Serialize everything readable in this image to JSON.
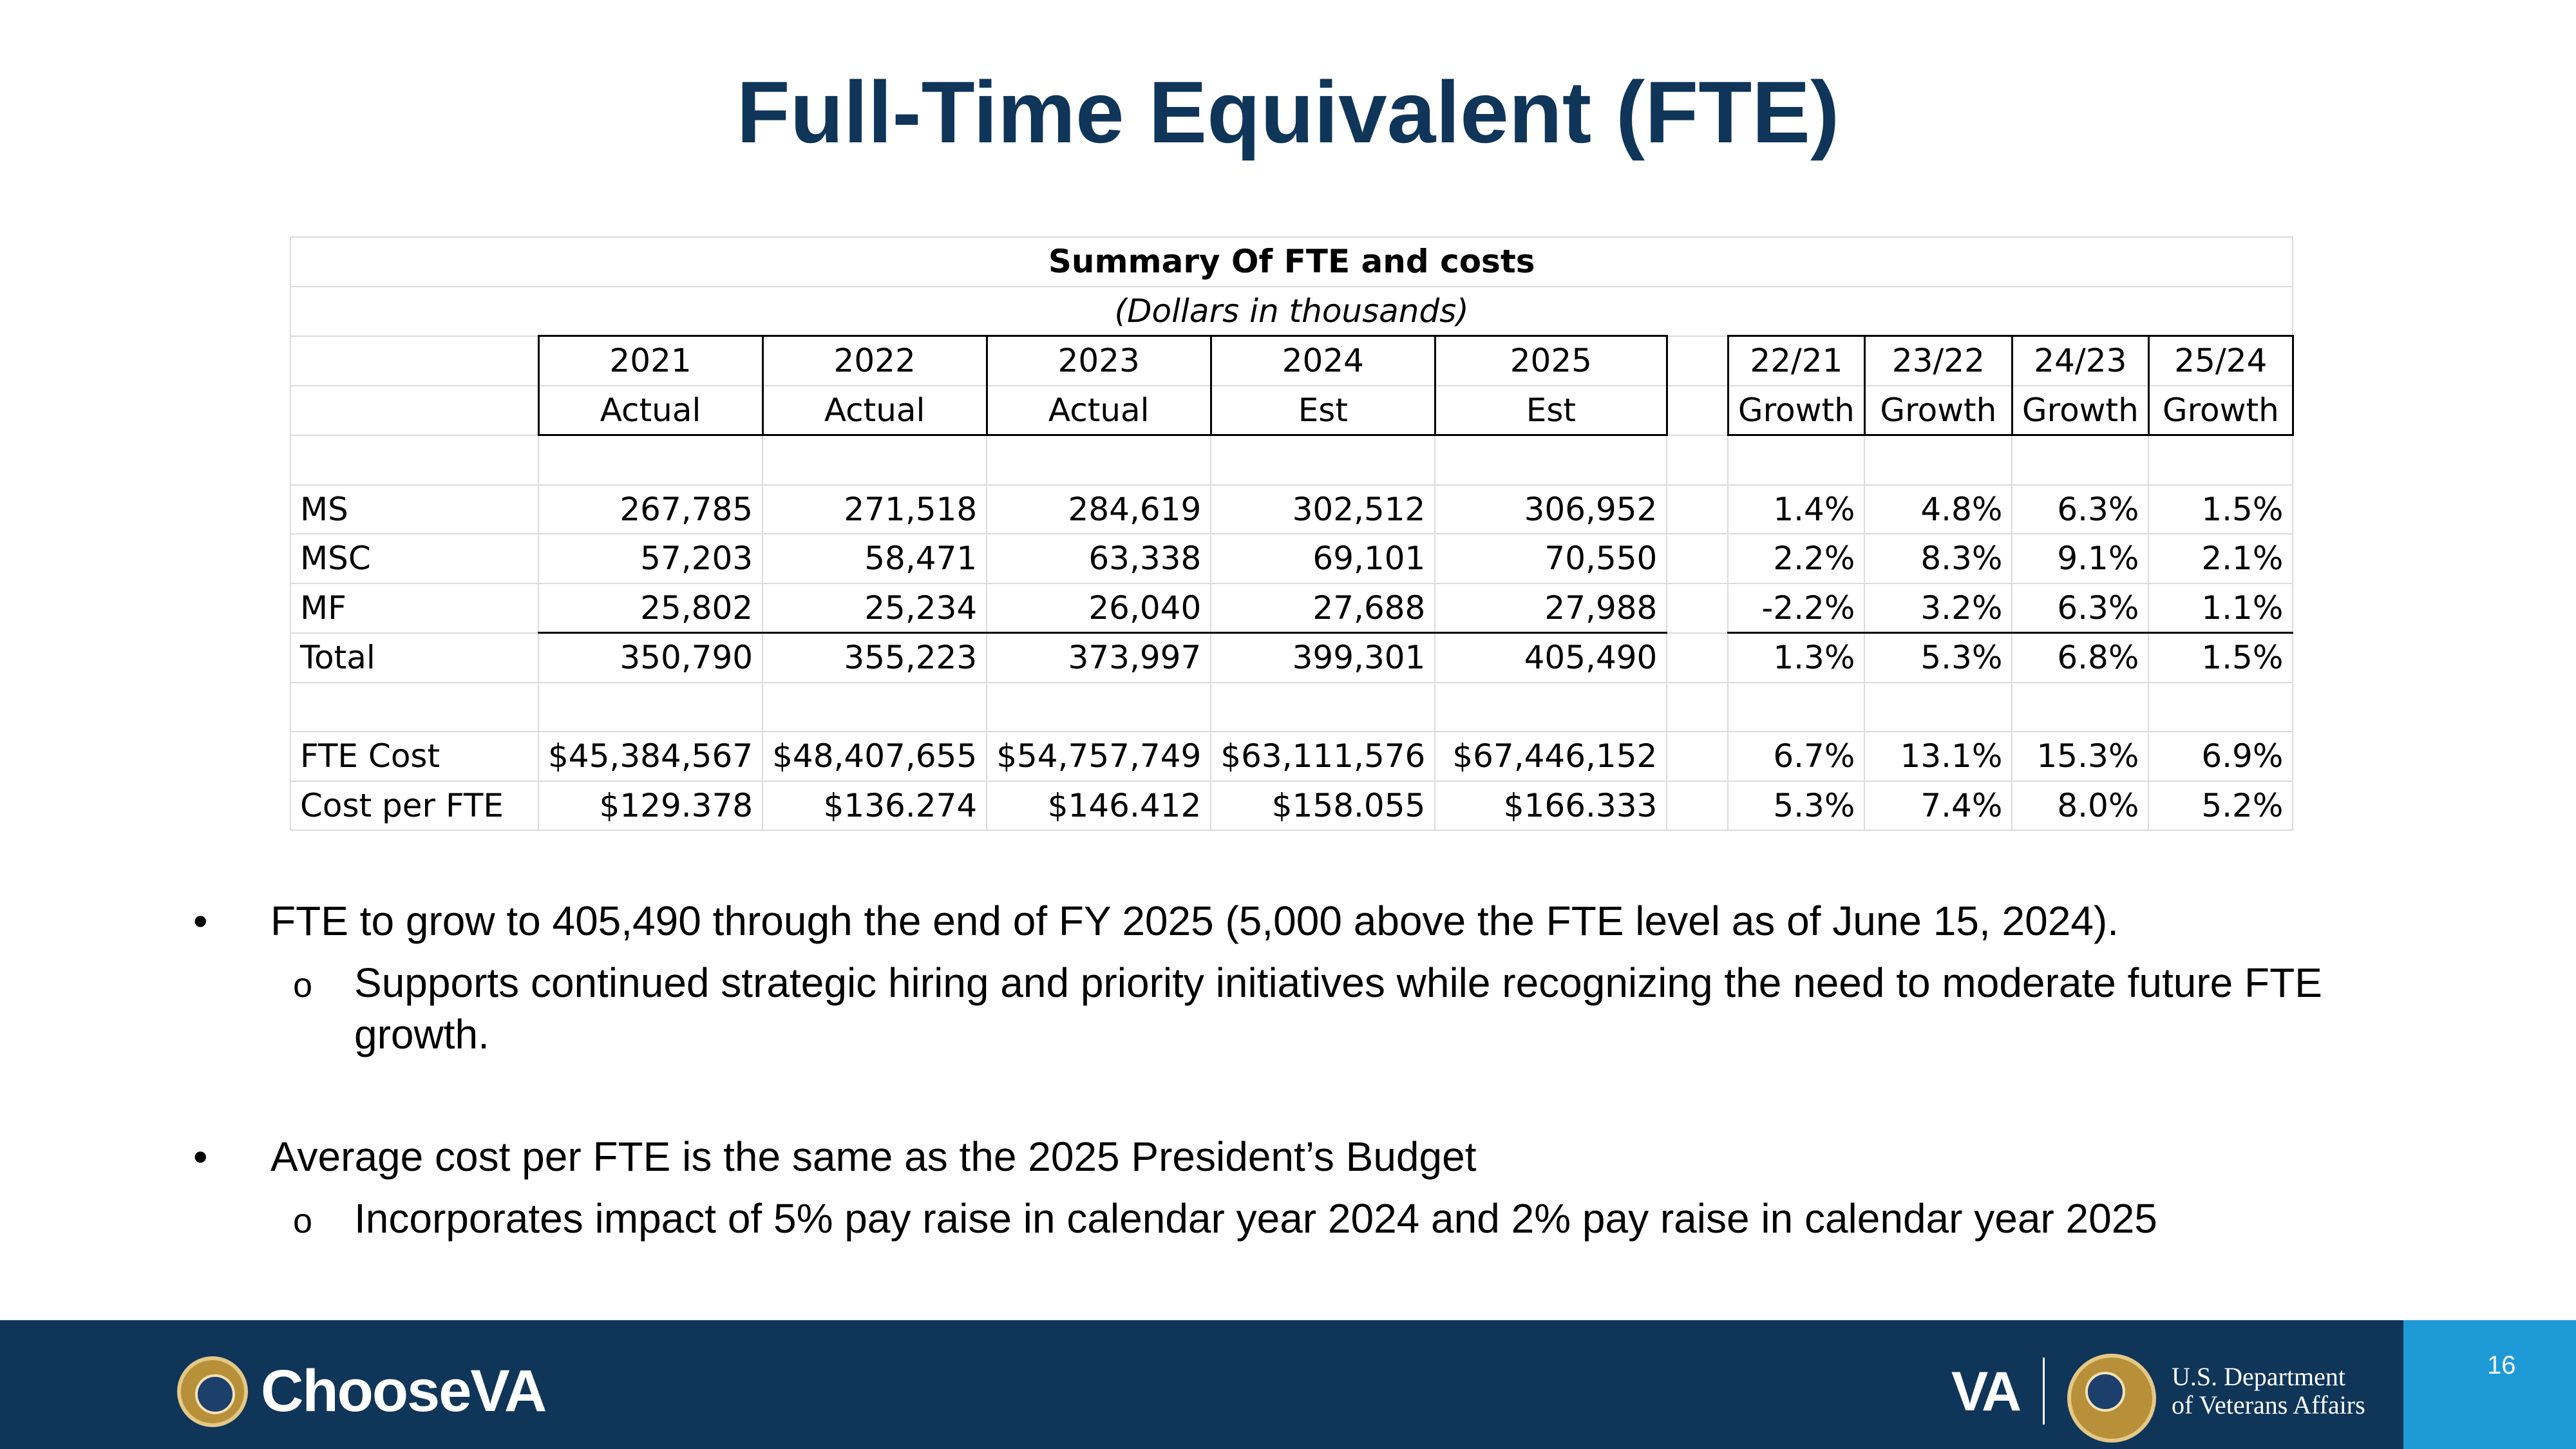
{
  "title": "Full-Time Equivalent (FTE)",
  "table": {
    "caption": "Summary Of FTE and costs",
    "subcaption": "(Dollars in thousands)",
    "years": [
      "2021",
      "2022",
      "2023",
      "2024",
      "2025"
    ],
    "year_types": [
      "Actual",
      "Actual",
      "Actual",
      "Est",
      "Est"
    ],
    "growth_years": [
      "22/21",
      "23/22",
      "24/23",
      "25/24"
    ],
    "growth_label": "Growth",
    "rows": [
      {
        "label": "MS",
        "values": [
          "267,785",
          "271,518",
          "284,619",
          "302,512",
          "306,952"
        ],
        "growth": [
          "1.4%",
          "4.8%",
          "6.3%",
          "1.5%"
        ]
      },
      {
        "label": "MSC",
        "values": [
          "57,203",
          "58,471",
          "63,338",
          "69,101",
          "70,550"
        ],
        "growth": [
          "2.2%",
          "8.3%",
          "9.1%",
          "2.1%"
        ]
      },
      {
        "label": "MF",
        "values": [
          "25,802",
          "25,234",
          "26,040",
          "27,688",
          "27,988"
        ],
        "growth": [
          "-2.2%",
          "3.2%",
          "6.3%",
          "1.1%"
        ]
      },
      {
        "label": "Total",
        "values": [
          "350,790",
          "355,223",
          "373,997",
          "399,301",
          "405,490"
        ],
        "growth": [
          "1.3%",
          "5.3%",
          "6.8%",
          "1.5%"
        ]
      }
    ],
    "cost_rows": [
      {
        "label": "FTE Cost",
        "values": [
          "$45,384,567",
          "$48,407,655",
          "$54,757,749",
          "$63,111,576",
          "$67,446,152"
        ],
        "growth": [
          "6.7%",
          "13.1%",
          "15.3%",
          "6.9%"
        ]
      },
      {
        "label": "Cost per FTE",
        "values": [
          "$129.378",
          "$136.274",
          "$146.412",
          "$158.055",
          "$166.333"
        ],
        "growth": [
          "5.3%",
          "7.4%",
          "8.0%",
          "5.2%"
        ]
      }
    ]
  },
  "bullets": [
    {
      "text": "FTE to grow to 405,490 through the end of FY 2025 (5,000 above the FTE level as of June 15, 2024).",
      "sub": [
        "Supports continued strategic hiring and priority initiatives while recognizing the need to moderate future FTE growth."
      ]
    },
    {
      "text": "Average cost per FTE is the same as the 2025 President’s Budget",
      "sub": [
        "Incorporates impact of 5% pay raise in calendar year 2024 and 2% pay raise in calendar year 2025"
      ]
    }
  ],
  "bullet_glyph": "•",
  "sub_bullet_glyph": "o",
  "footer": {
    "brand": "ChooseVA",
    "va_mark": "VA",
    "dept_line1": "U.S. Department",
    "dept_line2": "of Veterans Affairs",
    "page_number": "16",
    "colors": {
      "bar": "#0f3559",
      "page_box": "#1d9ad6",
      "title": "#0f3559"
    }
  }
}
